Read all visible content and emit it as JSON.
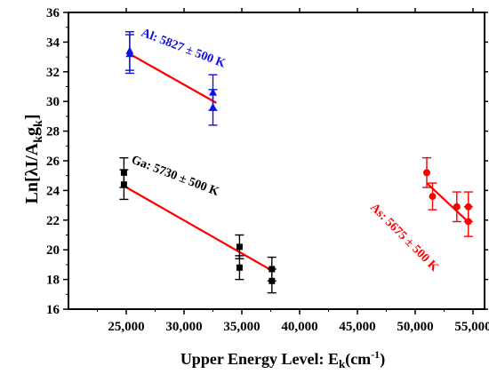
{
  "chart_data": {
    "type": "scatter",
    "title": "",
    "xlabel": {
      "main": "Upper Energy Level: E",
      "sub": "k",
      "rest": "(cm",
      "sup": "-1",
      "close": ")"
    },
    "ylabel": {
      "main": "Ln[λI/A",
      "sub1": "k",
      "mid": "g",
      "sub2": "k",
      "close": "]"
    },
    "xlim": [
      20000,
      56000
    ],
    "ylim": [
      16,
      36
    ],
    "xticks": [
      25000,
      30000,
      35000,
      40000,
      45000,
      50000,
      55000
    ],
    "xtick_labels": [
      "25,000",
      "30,000",
      "35,000",
      "40,000",
      "45,000",
      "50,000",
      "55,000"
    ],
    "yticks": [
      16,
      18,
      20,
      22,
      24,
      26,
      28,
      30,
      32,
      34,
      36
    ],
    "ytick_labels": [
      "16",
      "18",
      "20",
      "22",
      "24",
      "26",
      "28",
      "30",
      "32",
      "34",
      "36"
    ],
    "grid": false,
    "series": [
      {
        "name": "Al",
        "marker": "triangle",
        "color": "#1010e0",
        "points": [
          {
            "x": 25300,
            "y": 33.4,
            "err": 1.3
          },
          {
            "x": 25300,
            "y": 33.2,
            "err": 1.3
          },
          {
            "x": 32500,
            "y": 30.6,
            "err": 1.2
          },
          {
            "x": 32500,
            "y": 29.6,
            "err": 1.2
          }
        ],
        "fit": {
          "x": [
            25300,
            32800
          ],
          "y": [
            33.2,
            29.9
          ]
        }
      },
      {
        "name": "Ga",
        "marker": "square",
        "color": "#000000",
        "points": [
          {
            "x": 24800,
            "y": 25.2,
            "err": 1.0
          },
          {
            "x": 24800,
            "y": 24.4,
            "err": 1.0
          },
          {
            "x": 34800,
            "y": 20.2,
            "err": 0.8
          },
          {
            "x": 34800,
            "y": 18.8,
            "err": 0.8
          },
          {
            "x": 37600,
            "y": 18.7,
            "err": 0.8
          },
          {
            "x": 37600,
            "y": 17.9,
            "err": 0.8
          }
        ],
        "fit": {
          "x": [
            24800,
            37600
          ],
          "y": [
            24.3,
            18.6
          ]
        }
      },
      {
        "name": "As",
        "marker": "circle",
        "color": "#ff0000",
        "points": [
          {
            "x": 51000,
            "y": 25.2,
            "err": 1.0
          },
          {
            "x": 51500,
            "y": 23.6,
            "err": 0.9
          },
          {
            "x": 53600,
            "y": 22.9,
            "err": 1.0
          },
          {
            "x": 54600,
            "y": 22.9,
            "err": 1.0
          },
          {
            "x": 54600,
            "y": 21.9,
            "err": 1.0
          }
        ],
        "fit": {
          "x": [
            51000,
            54700
          ],
          "y": [
            24.5,
            21.8
          ]
        }
      }
    ],
    "annotations": [
      {
        "series": "Al",
        "text": "Al: 5827 ± 500 K",
        "color": "#1010e0"
      },
      {
        "series": "Ga",
        "text": "Ga: 5730 ± 500 K",
        "color": "#000000"
      },
      {
        "series": "As",
        "text": "As: 5675 ± 500 K",
        "color": "#ff0000"
      }
    ]
  }
}
